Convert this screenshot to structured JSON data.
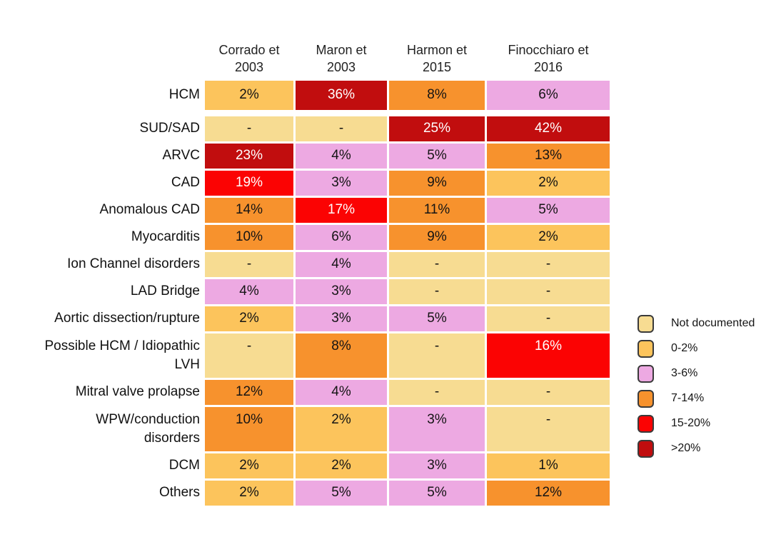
{
  "chart_data": {
    "type": "heatmap",
    "columns": [
      "Corrado et\n2003",
      "Maron et\n2003",
      "Harmon et\n2015",
      "Finocchiaro et\n2016"
    ],
    "rows": [
      {
        "label": "HCM",
        "values": [
          "2%",
          "36%",
          "8%",
          "6%"
        ],
        "bins": [
          "0-2%",
          ">20%",
          "7-14%",
          "3-6%"
        ],
        "gap_after": true
      },
      {
        "label": "SUD/SAD",
        "values": [
          "-",
          "-",
          "25%",
          "42%"
        ],
        "bins": [
          "Not documented",
          "Not documented",
          ">20%",
          ">20%"
        ]
      },
      {
        "label": "ARVC",
        "values": [
          "23%",
          "4%",
          "5%",
          "13%"
        ],
        "bins": [
          ">20%",
          "3-6%",
          "3-6%",
          "7-14%"
        ]
      },
      {
        "label": "CAD",
        "values": [
          "19%",
          "3%",
          "9%",
          "2%"
        ],
        "bins": [
          "15-20%",
          "3-6%",
          "7-14%",
          "0-2%"
        ]
      },
      {
        "label": "Anomalous CAD",
        "values": [
          "14%",
          "17%",
          "11%",
          "5%"
        ],
        "bins": [
          "7-14%",
          "15-20%",
          "7-14%",
          "3-6%"
        ]
      },
      {
        "label": "Myocarditis",
        "values": [
          "10%",
          "6%",
          "9%",
          "2%"
        ],
        "bins": [
          "7-14%",
          "3-6%",
          "7-14%",
          "0-2%"
        ]
      },
      {
        "label": "Ion Channel disorders",
        "values": [
          "-",
          "4%",
          "-",
          "-"
        ],
        "bins": [
          "Not documented",
          "3-6%",
          "Not documented",
          "Not documented"
        ]
      },
      {
        "label": "LAD Bridge",
        "values": [
          "4%",
          "3%",
          "-",
          "-"
        ],
        "bins": [
          "3-6%",
          "3-6%",
          "Not documented",
          "Not documented"
        ]
      },
      {
        "label": "Aortic dissection/rupture",
        "values": [
          "2%",
          "3%",
          "5%",
          "-"
        ],
        "bins": [
          "0-2%",
          "3-6%",
          "3-6%",
          "Not documented"
        ]
      },
      {
        "label": "Possible HCM / Idiopathic\nLVH",
        "values": [
          "-",
          "8%",
          "-",
          "16%"
        ],
        "bins": [
          "Not documented",
          "7-14%",
          "Not documented",
          "15-20%"
        ],
        "tall": true
      },
      {
        "label": "Mitral valve prolapse",
        "values": [
          "12%",
          "4%",
          "-",
          "-"
        ],
        "bins": [
          "7-14%",
          "3-6%",
          "Not documented",
          "Not documented"
        ]
      },
      {
        "label": "WPW/conduction\ndisorders",
        "values": [
          "10%",
          "2%",
          "3%",
          "-"
        ],
        "bins": [
          "7-14%",
          "0-2%",
          "3-6%",
          "Not documented"
        ],
        "tall": true
      },
      {
        "label": "DCM",
        "values": [
          "2%",
          "2%",
          "3%",
          "1%"
        ],
        "bins": [
          "0-2%",
          "0-2%",
          "3-6%",
          "0-2%"
        ]
      },
      {
        "label": "Others",
        "values": [
          "2%",
          "5%",
          "5%",
          "12%"
        ],
        "bins": [
          "0-2%",
          "3-6%",
          "3-6%",
          "7-14%"
        ]
      }
    ],
    "legend": {
      "position": "right",
      "items": [
        {
          "label": "Not documented",
          "color": "#F7DC92"
        },
        {
          "label": "0-2%",
          "color": "#FCC45C"
        },
        {
          "label": "3-6%",
          "color": "#EDA9E2"
        },
        {
          "label": "7-14%",
          "color": "#F7922D"
        },
        {
          "label": "15-20%",
          "color": "#FB0303"
        },
        {
          "label": ">20%",
          "color": "#C10D0E"
        }
      ]
    },
    "white_text_bins": [
      "15-20%",
      ">20%"
    ],
    "cell_text_color": "#141414",
    "white_text_color": "#FFFFFF"
  }
}
